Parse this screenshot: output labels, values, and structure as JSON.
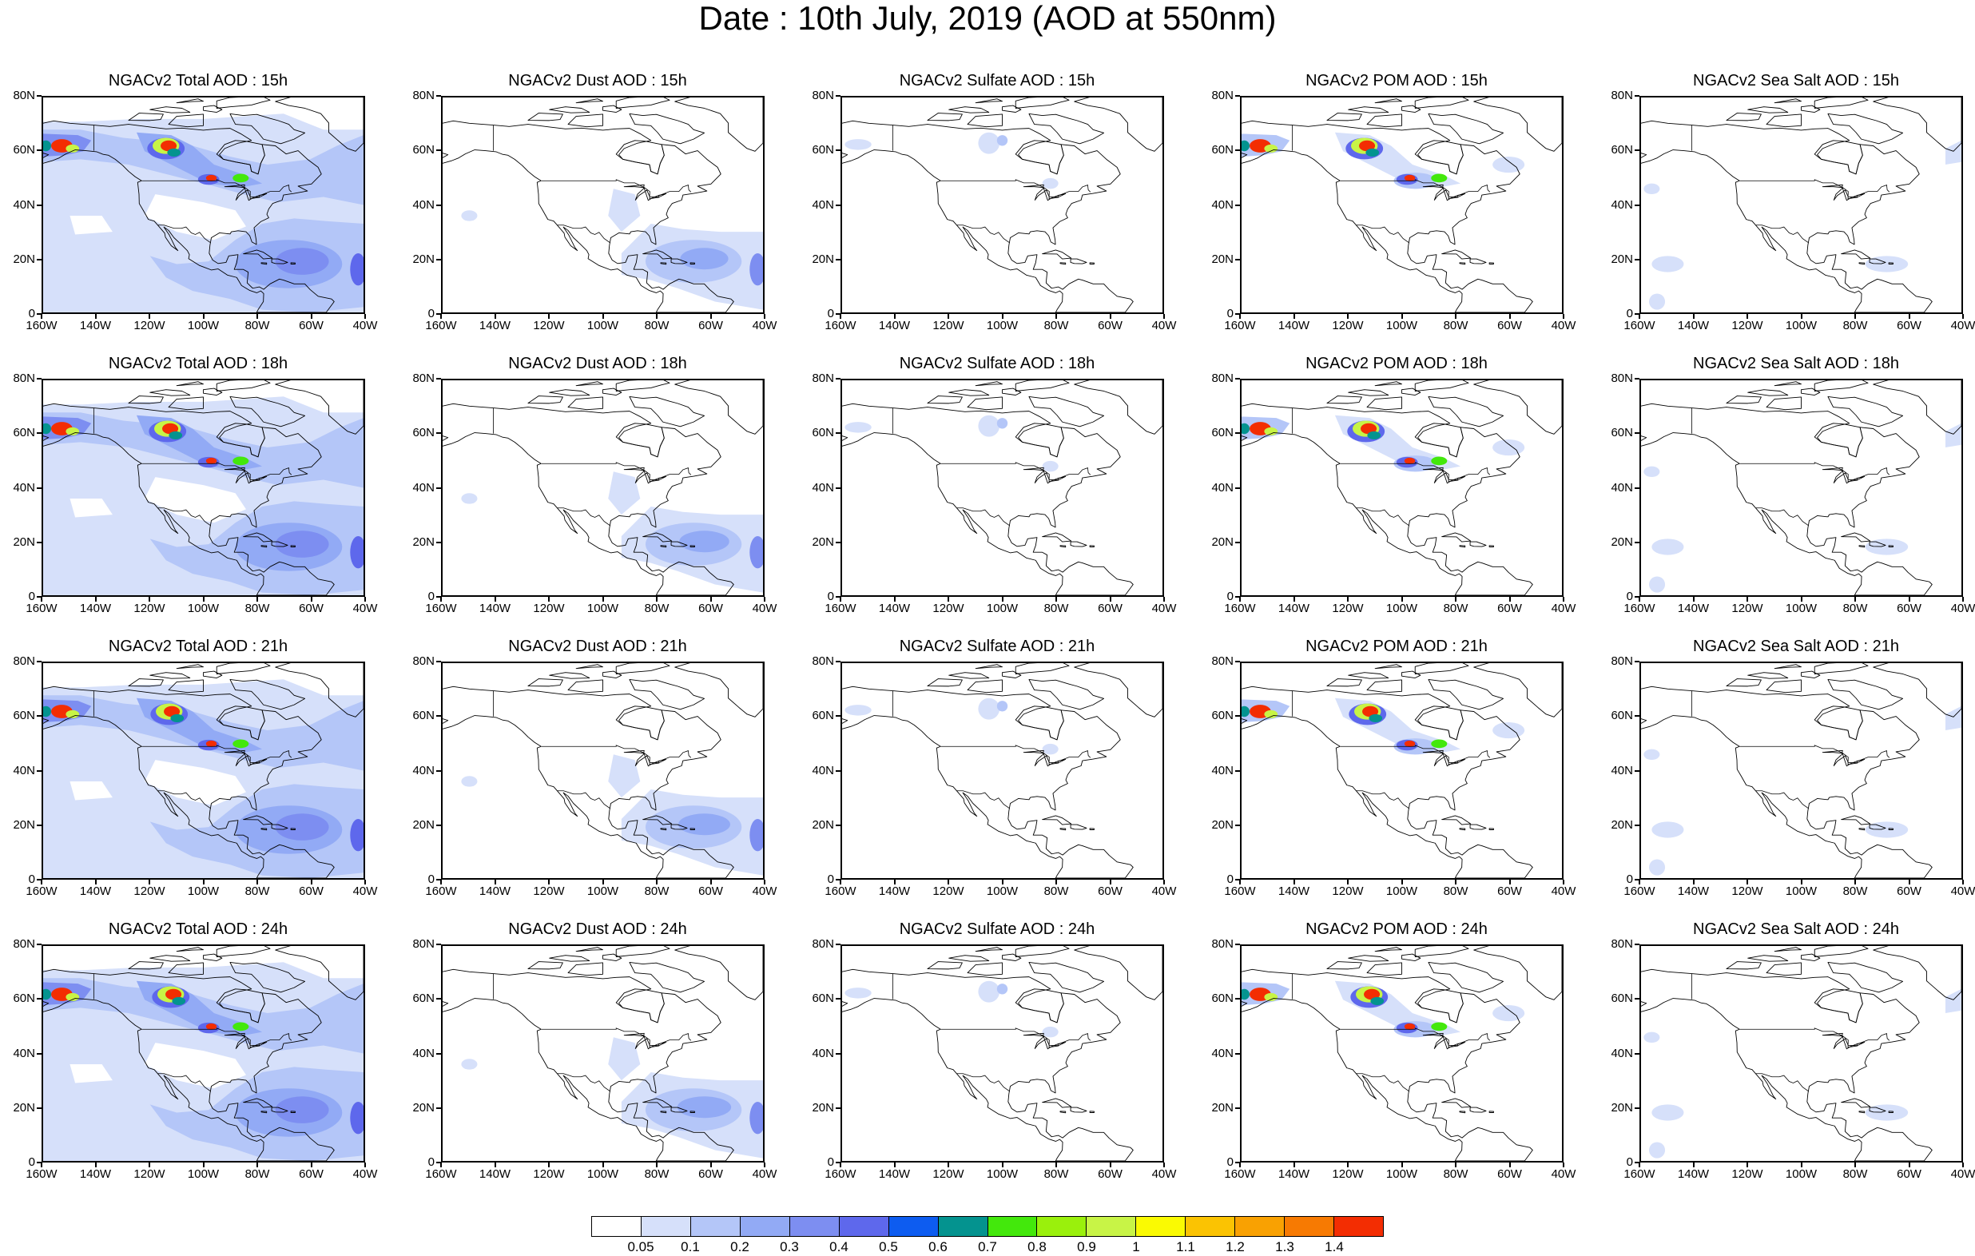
{
  "title": "Date : 10th July, 2019 (AOD at 550nm)",
  "rows": [
    "15h",
    "18h",
    "21h",
    "24h"
  ],
  "columns": [
    {
      "id": "total",
      "titles": [
        "NGACv2 Total AOD : 15h",
        "NGACv2 Total AOD : 18h",
        "NGACv2 Total AOD : 21h",
        "NGACv2 Total AOD : 24h"
      ]
    },
    {
      "id": "dust",
      "titles": [
        "NGACv2 Dust AOD : 15h",
        "NGACv2 Dust AOD : 18h",
        "NGACv2 Dust AOD : 21h",
        "NGACv2 Dust AOD : 24h"
      ]
    },
    {
      "id": "sulfate",
      "titles": [
        "NGACv2 Sulfate AOD : 15h",
        "NGACv2 Sulfate AOD : 18h",
        "NGACv2 Sulfate AOD : 21h",
        "NGACv2 Sulfate AOD : 24h"
      ]
    },
    {
      "id": "pom",
      "titles": [
        "NGACv2 POM AOD : 15h",
        "NGACv2 POM AOD : 18h",
        "NGACv2 POM AOD : 21h",
        "NGACv2 POM AOD : 24h"
      ]
    },
    {
      "id": "seasalt",
      "titles": [
        "NGACv2 Sea Salt AOD : 15h",
        "NGACv2 Sea Salt AOD : 18h",
        "NGACv2 Sea Salt AOD : 21h",
        "NGACv2 Sea Salt  AOD : 24h"
      ]
    }
  ],
  "lat_labels": [
    "80N",
    "60N",
    "40N",
    "20N",
    "0"
  ],
  "lon_labels": [
    "160W",
    "140W",
    "120W",
    "100W",
    "80W",
    "60W",
    "40W"
  ],
  "extent": {
    "lon_min": -160,
    "lon_max": -40,
    "lat_min": 0,
    "lat_max": 80
  },
  "colorbar": {
    "colors": [
      "#ffffff",
      "#d6e0fa",
      "#b4c6f8",
      "#92aaf5",
      "#7d8ef1",
      "#5e68ec",
      "#0d5cf0",
      "#04938f",
      "#43e80c",
      "#9af00c",
      "#c8f446",
      "#fafa02",
      "#fbc302",
      "#f9a102",
      "#f77a02",
      "#f32d02"
    ],
    "labels": [
      "0.05",
      "0.1",
      "0.2",
      "0.3",
      "0.4",
      "0.5",
      "0.6",
      "0.7",
      "0.8",
      "0.9",
      "1",
      "1.1",
      "1.2",
      "1.3",
      "1.4"
    ]
  },
  "colors": {
    "total_background": "#d6e0fa",
    "transport": "#b4c6f8",
    "tropical": "#7d8ef1",
    "plume_core": "#f32d02"
  }
}
